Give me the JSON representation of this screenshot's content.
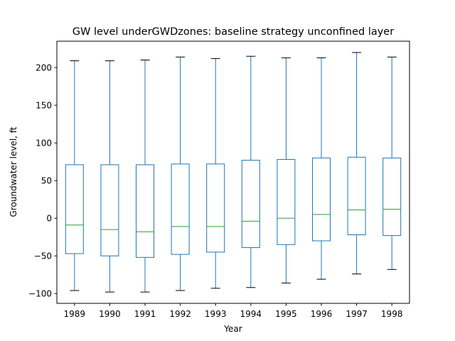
{
  "chart_data": {
    "type": "boxplot",
    "title": "GW level underGWDzones: baseline strategy unconfined layer",
    "xlabel": "Year",
    "ylabel": "Groundwater level, ft",
    "ylim": [
      -113,
      235
    ],
    "yticks": [
      -100,
      -50,
      0,
      50,
      100,
      150,
      200
    ],
    "grid": false,
    "categories": [
      "1989",
      "1990",
      "1991",
      "1992",
      "1993",
      "1994",
      "1995",
      "1996",
      "1997",
      "1998"
    ],
    "boxes": [
      {
        "whisker_low": -96,
        "q1": -47,
        "median": -9,
        "q3": 71,
        "whisker_high": 209
      },
      {
        "whisker_low": -98,
        "q1": -50,
        "median": -15,
        "q3": 71,
        "whisker_high": 209
      },
      {
        "whisker_low": -98,
        "q1": -52,
        "median": -18,
        "q3": 71,
        "whisker_high": 210
      },
      {
        "whisker_low": -96,
        "q1": -48,
        "median": -11,
        "q3": 72,
        "whisker_high": 214
      },
      {
        "whisker_low": -93,
        "q1": -45,
        "median": -11,
        "q3": 72,
        "whisker_high": 212
      },
      {
        "whisker_low": -92,
        "q1": -39,
        "median": -4,
        "q3": 77,
        "whisker_high": 215
      },
      {
        "whisker_low": -86,
        "q1": -35,
        "median": 0,
        "q3": 78,
        "whisker_high": 213
      },
      {
        "whisker_low": -81,
        "q1": -30,
        "median": 5,
        "q3": 80,
        "whisker_high": 213
      },
      {
        "whisker_low": -74,
        "q1": -22,
        "median": 11,
        "q3": 81,
        "whisker_high": 220
      },
      {
        "whisker_low": -68,
        "q1": -23,
        "median": 12,
        "q3": 80,
        "whisker_high": 214
      }
    ],
    "colors": {
      "box": "#1f77b4",
      "median": "#2ca02c",
      "cap": "#000000",
      "axes": "#000000"
    }
  }
}
